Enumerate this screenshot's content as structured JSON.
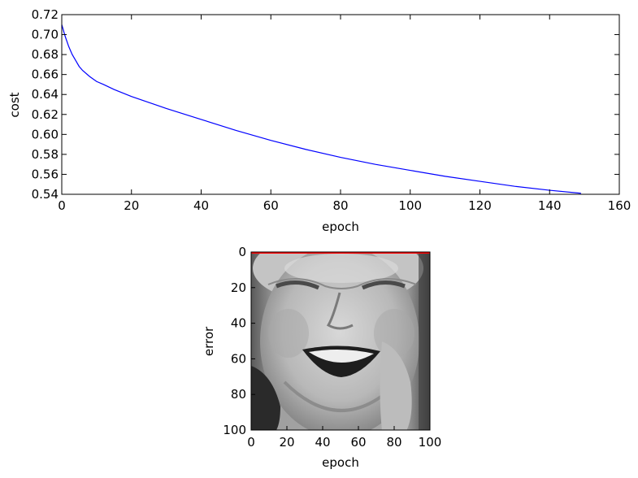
{
  "chart_data": [
    {
      "type": "line",
      "title": "",
      "xlabel": "epoch",
      "ylabel": "cost",
      "xlim": [
        0,
        160
      ],
      "ylim": [
        0.54,
        0.72
      ],
      "xticks": [
        0,
        20,
        40,
        60,
        80,
        100,
        120,
        140,
        160
      ],
      "yticks": [
        0.54,
        0.56,
        0.58,
        0.6,
        0.62,
        0.64,
        0.66,
        0.68,
        0.7,
        0.72
      ],
      "xtick_labels": [
        "0",
        "20",
        "40",
        "60",
        "80",
        "100",
        "120",
        "140",
        "160"
      ],
      "ytick_labels": [
        "0.54",
        "0.56",
        "0.58",
        "0.60",
        "0.62",
        "0.64",
        "0.66",
        "0.68",
        "0.70",
        "0.72"
      ],
      "grid": false,
      "series": [
        {
          "color": "#0000ff",
          "x": [
            0,
            1,
            2,
            3,
            4,
            5,
            6,
            8,
            10,
            12,
            15,
            20,
            25,
            30,
            40,
            50,
            60,
            70,
            80,
            90,
            100,
            110,
            120,
            130,
            140,
            149
          ],
          "y": [
            0.71,
            0.698,
            0.688,
            0.68,
            0.674,
            0.668,
            0.664,
            0.658,
            0.653,
            0.65,
            0.645,
            0.638,
            0.632,
            0.626,
            0.615,
            0.604,
            0.594,
            0.585,
            0.577,
            0.57,
            0.564,
            0.558,
            0.553,
            0.548,
            0.544,
            0.541
          ]
        }
      ]
    },
    {
      "type": "heatmap",
      "title": "",
      "xlabel": "epoch",
      "ylabel": "error",
      "xlim": [
        0,
        100
      ],
      "ylim": [
        100,
        0
      ],
      "xticks": [
        0,
        20,
        40,
        60,
        80,
        100
      ],
      "yticks": [
        0,
        20,
        40,
        60,
        80,
        100
      ],
      "xtick_labels": [
        "0",
        "20",
        "40",
        "60",
        "80",
        "100"
      ],
      "ytick_labels": [
        "0",
        "20",
        "40",
        "60",
        "80",
        "100"
      ],
      "colormap": "grayscale",
      "content": "grayscale image of a smiling face",
      "overlay_line": {
        "color": "#ff0000",
        "x": [
          0,
          100
        ],
        "y": [
          0,
          0
        ]
      }
    }
  ]
}
